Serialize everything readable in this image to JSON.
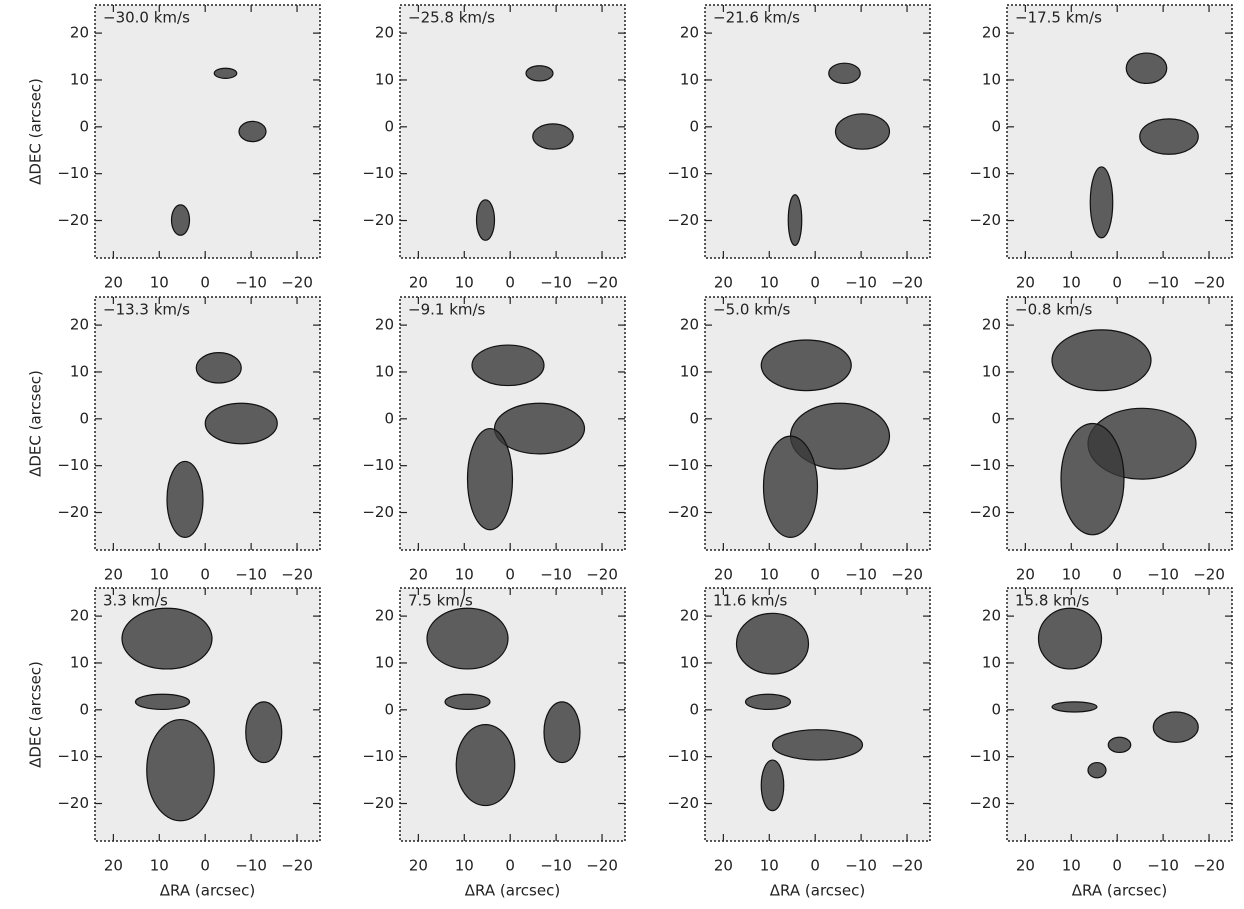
{
  "chart_data": [
    {
      "type": "contour",
      "title": "−30.0 km/s",
      "ylabel": "ΔDEC (arcsec)",
      "xlim": [
        24,
        -25
      ],
      "ylim": [
        -28,
        26
      ],
      "xticks": [
        20,
        10,
        0,
        {
          "value": -10,
          "label": "−10"
        },
        {
          "value": -20,
          "label": "−20"
        }
      ],
      "yticks": [
        {
          "value": -20,
          "label": "−20"
        },
        {
          "value": -10,
          "label": "−10"
        },
        0,
        10,
        20
      ]
    },
    {
      "type": "contour",
      "title": "−25.8 km/s",
      "xlim": [
        24,
        -25
      ],
      "ylim": [
        -28,
        26
      ],
      "xticks": [
        20,
        10,
        0,
        {
          "value": -10,
          "label": "−10"
        },
        {
          "value": -20,
          "label": "−20"
        }
      ],
      "yticks": [
        {
          "value": -20,
          "label": "−20"
        },
        {
          "value": -10,
          "label": "−10"
        },
        0,
        10,
        20
      ]
    },
    {
      "type": "contour",
      "title": "−21.6 km/s",
      "xlim": [
        24,
        -25
      ],
      "ylim": [
        -28,
        26
      ],
      "xticks": [
        20,
        10,
        0,
        {
          "value": -10,
          "label": "−10"
        },
        {
          "value": -20,
          "label": "−20"
        }
      ],
      "yticks": [
        {
          "value": -20,
          "label": "−20"
        },
        {
          "value": -10,
          "label": "−10"
        },
        0,
        10,
        20
      ]
    },
    {
      "type": "contour",
      "title": "−17.5 km/s",
      "xlim": [
        24,
        -25
      ],
      "ylim": [
        -28,
        26
      ],
      "xticks": [
        20,
        10,
        0,
        {
          "value": -10,
          "label": "−10"
        },
        {
          "value": -20,
          "label": "−20"
        }
      ],
      "yticks": [
        {
          "value": -20,
          "label": "−20"
        },
        {
          "value": -10,
          "label": "−10"
        },
        0,
        10,
        20
      ]
    },
    {
      "type": "contour",
      "title": "−13.3 km/s",
      "ylabel": "ΔDEC (arcsec)",
      "xlim": [
        24,
        -25
      ],
      "ylim": [
        -28,
        26
      ],
      "xticks": [
        20,
        10,
        0,
        {
          "value": -10,
          "label": "−10"
        },
        {
          "value": -20,
          "label": "−20"
        }
      ],
      "yticks": [
        {
          "value": -20,
          "label": "−20"
        },
        {
          "value": -10,
          "label": "−10"
        },
        0,
        10,
        20
      ]
    },
    {
      "type": "contour",
      "title": "−9.1 km/s",
      "xlim": [
        24,
        -25
      ],
      "ylim": [
        -28,
        26
      ],
      "xticks": [
        20,
        10,
        0,
        {
          "value": -10,
          "label": "−10"
        },
        {
          "value": -20,
          "label": "−20"
        }
      ],
      "yticks": [
        {
          "value": -20,
          "label": "−20"
        },
        {
          "value": -10,
          "label": "−10"
        },
        0,
        10,
        20
      ]
    },
    {
      "type": "contour",
      "title": "−5.0 km/s",
      "xlim": [
        24,
        -25
      ],
      "ylim": [
        -28,
        26
      ],
      "xticks": [
        20,
        10,
        0,
        {
          "value": -10,
          "label": "−10"
        },
        {
          "value": -20,
          "label": "−20"
        }
      ],
      "yticks": [
        {
          "value": -20,
          "label": "−20"
        },
        {
          "value": -10,
          "label": "−10"
        },
        0,
        10,
        20
      ]
    },
    {
      "type": "contour",
      "title": "−0.8 km/s",
      "xlim": [
        24,
        -25
      ],
      "ylim": [
        -28,
        26
      ],
      "xticks": [
        20,
        10,
        0,
        {
          "value": -10,
          "label": "−10"
        },
        {
          "value": -20,
          "label": "−20"
        }
      ],
      "yticks": [
        {
          "value": -20,
          "label": "−20"
        },
        {
          "value": -10,
          "label": "−10"
        },
        0,
        10,
        20
      ]
    },
    {
      "type": "contour",
      "title": "3.3 km/s",
      "xlabel": "ΔRA (arcsec)",
      "ylabel": "ΔDEC (arcsec)",
      "xlim": [
        24,
        -25
      ],
      "ylim": [
        -28,
        26
      ],
      "xticks": [
        20,
        10,
        0,
        {
          "value": -10,
          "label": "−10"
        },
        {
          "value": -20,
          "label": "−20"
        }
      ],
      "yticks": [
        {
          "value": -20,
          "label": "−20"
        },
        {
          "value": -10,
          "label": "−10"
        },
        0,
        10,
        20
      ]
    },
    {
      "type": "contour",
      "title": "7.5 km/s",
      "xlabel": "ΔRA (arcsec)",
      "xlim": [
        24,
        -25
      ],
      "ylim": [
        -28,
        26
      ],
      "xticks": [
        20,
        10,
        0,
        {
          "value": -10,
          "label": "−10"
        },
        {
          "value": -20,
          "label": "−20"
        }
      ],
      "yticks": [
        {
          "value": -20,
          "label": "−20"
        },
        {
          "value": -10,
          "label": "−10"
        },
        0,
        10,
        20
      ]
    },
    {
      "type": "contour",
      "title": "11.6 km/s",
      "xlabel": "ΔRA (arcsec)",
      "xlim": [
        24,
        -25
      ],
      "ylim": [
        -28,
        26
      ],
      "xticks": [
        20,
        10,
        0,
        {
          "value": -10,
          "label": "−10"
        },
        {
          "value": -20,
          "label": "−20"
        }
      ],
      "yticks": [
        {
          "value": -20,
          "label": "−20"
        },
        {
          "value": -10,
          "label": "−10"
        },
        0,
        10,
        20
      ]
    },
    {
      "type": "contour",
      "title": "15.8 km/s",
      "xlabel": "ΔRA (arcsec)",
      "xlim": [
        24,
        -25
      ],
      "ylim": [
        -28,
        26
      ],
      "xticks": [
        20,
        10,
        0,
        {
          "value": -10,
          "label": "−10"
        },
        {
          "value": -20,
          "label": "−20"
        }
      ],
      "yticks": [
        {
          "value": -20,
          "label": "−20"
        },
        {
          "value": -10,
          "label": "−10"
        },
        0,
        10,
        20
      ]
    }
  ]
}
